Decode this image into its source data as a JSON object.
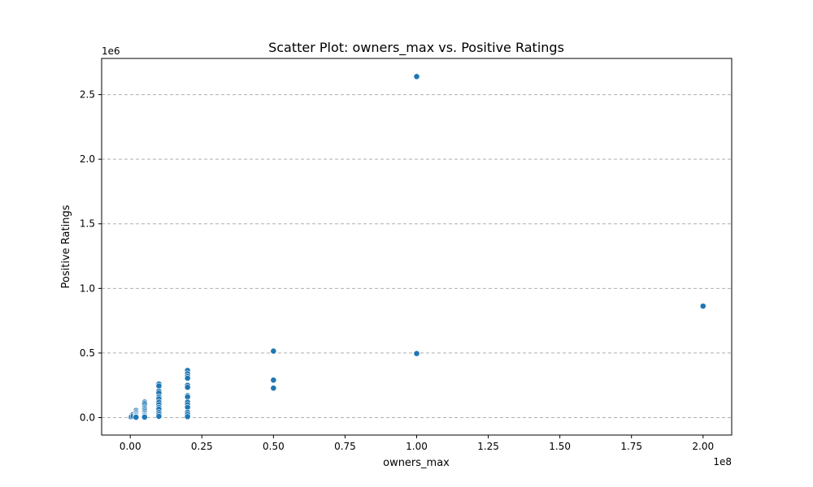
{
  "chart_data": {
    "type": "scatter",
    "title": "Scatter Plot: owners_max vs. Positive Ratings",
    "xlabel": "owners_max",
    "ylabel": "Positive Ratings",
    "x_offset_label": "1e8",
    "y_offset_label": "1e6",
    "xlim": [
      -10000000,
      210000000
    ],
    "ylim": [
      -135000,
      2780000
    ],
    "x_ticks": [
      0,
      25000000,
      50000000,
      75000000,
      100000000,
      125000000,
      150000000,
      175000000,
      200000000
    ],
    "x_tick_labels": [
      "0.00",
      "0.25",
      "0.50",
      "0.75",
      "1.00",
      "1.25",
      "1.50",
      "1.75",
      "2.00"
    ],
    "y_ticks": [
      0,
      500000,
      1000000,
      1500000,
      2000000,
      2500000
    ],
    "y_tick_labels": [
      "0.0",
      "0.5",
      "1.0",
      "1.5",
      "2.0",
      "2.5"
    ],
    "grid": "y-dashed",
    "marker_color": "#1f77b4",
    "points": [
      {
        "x": 20000,
        "y": 0
      },
      {
        "x": 20000,
        "y": 3000
      },
      {
        "x": 20000,
        "y": 1500
      },
      {
        "x": 50000,
        "y": 5000
      },
      {
        "x": 50000,
        "y": 2000
      },
      {
        "x": 100000,
        "y": 8000
      },
      {
        "x": 100000,
        "y": 4000
      },
      {
        "x": 200000,
        "y": 10000
      },
      {
        "x": 200000,
        "y": 5000
      },
      {
        "x": 500000,
        "y": 15000
      },
      {
        "x": 500000,
        "y": 8000
      },
      {
        "x": 1000000,
        "y": 25000
      },
      {
        "x": 1000000,
        "y": 12000
      },
      {
        "x": 2000000,
        "y": 55000
      },
      {
        "x": 2000000,
        "y": 45000
      },
      {
        "x": 2000000,
        "y": 38000
      },
      {
        "x": 2000000,
        "y": 30000
      },
      {
        "x": 2000000,
        "y": 22000
      },
      {
        "x": 2000000,
        "y": 15000
      },
      {
        "x": 2000000,
        "y": 8000
      },
      {
        "x": 2000000,
        "y": 3000
      },
      {
        "x": 5000000,
        "y": 120000
      },
      {
        "x": 5000000,
        "y": 110000
      },
      {
        "x": 5000000,
        "y": 100000
      },
      {
        "x": 5000000,
        "y": 85000
      },
      {
        "x": 5000000,
        "y": 75000
      },
      {
        "x": 5000000,
        "y": 65000
      },
      {
        "x": 5000000,
        "y": 55000
      },
      {
        "x": 5000000,
        "y": 45000
      },
      {
        "x": 5000000,
        "y": 35000
      },
      {
        "x": 5000000,
        "y": 25000
      },
      {
        "x": 5000000,
        "y": 18000
      },
      {
        "x": 5000000,
        "y": 10000
      },
      {
        "x": 5000000,
        "y": 4000
      },
      {
        "x": 10000000,
        "y": 260000
      },
      {
        "x": 10000000,
        "y": 245000
      },
      {
        "x": 10000000,
        "y": 205000
      },
      {
        "x": 10000000,
        "y": 190000
      },
      {
        "x": 10000000,
        "y": 160000
      },
      {
        "x": 10000000,
        "y": 145000
      },
      {
        "x": 10000000,
        "y": 120000
      },
      {
        "x": 10000000,
        "y": 100000
      },
      {
        "x": 10000000,
        "y": 80000
      },
      {
        "x": 10000000,
        "y": 65000
      },
      {
        "x": 10000000,
        "y": 40000
      },
      {
        "x": 10000000,
        "y": 25000
      },
      {
        "x": 10000000,
        "y": 10000
      },
      {
        "x": 20000000,
        "y": 365000
      },
      {
        "x": 20000000,
        "y": 340000
      },
      {
        "x": 20000000,
        "y": 320000
      },
      {
        "x": 20000000,
        "y": 305000
      },
      {
        "x": 20000000,
        "y": 250000
      },
      {
        "x": 20000000,
        "y": 235000
      },
      {
        "x": 20000000,
        "y": 170000
      },
      {
        "x": 20000000,
        "y": 160000
      },
      {
        "x": 20000000,
        "y": 120000
      },
      {
        "x": 20000000,
        "y": 100000
      },
      {
        "x": 20000000,
        "y": 80000
      },
      {
        "x": 20000000,
        "y": 40000
      },
      {
        "x": 20000000,
        "y": 25000
      },
      {
        "x": 20000000,
        "y": 8000
      },
      {
        "x": 50000000,
        "y": 515000
      },
      {
        "x": 50000000,
        "y": 290000
      },
      {
        "x": 50000000,
        "y": 228000
      },
      {
        "x": 100000000,
        "y": 2640000
      },
      {
        "x": 100000000,
        "y": 496000
      },
      {
        "x": 200000000,
        "y": 863000
      }
    ]
  }
}
